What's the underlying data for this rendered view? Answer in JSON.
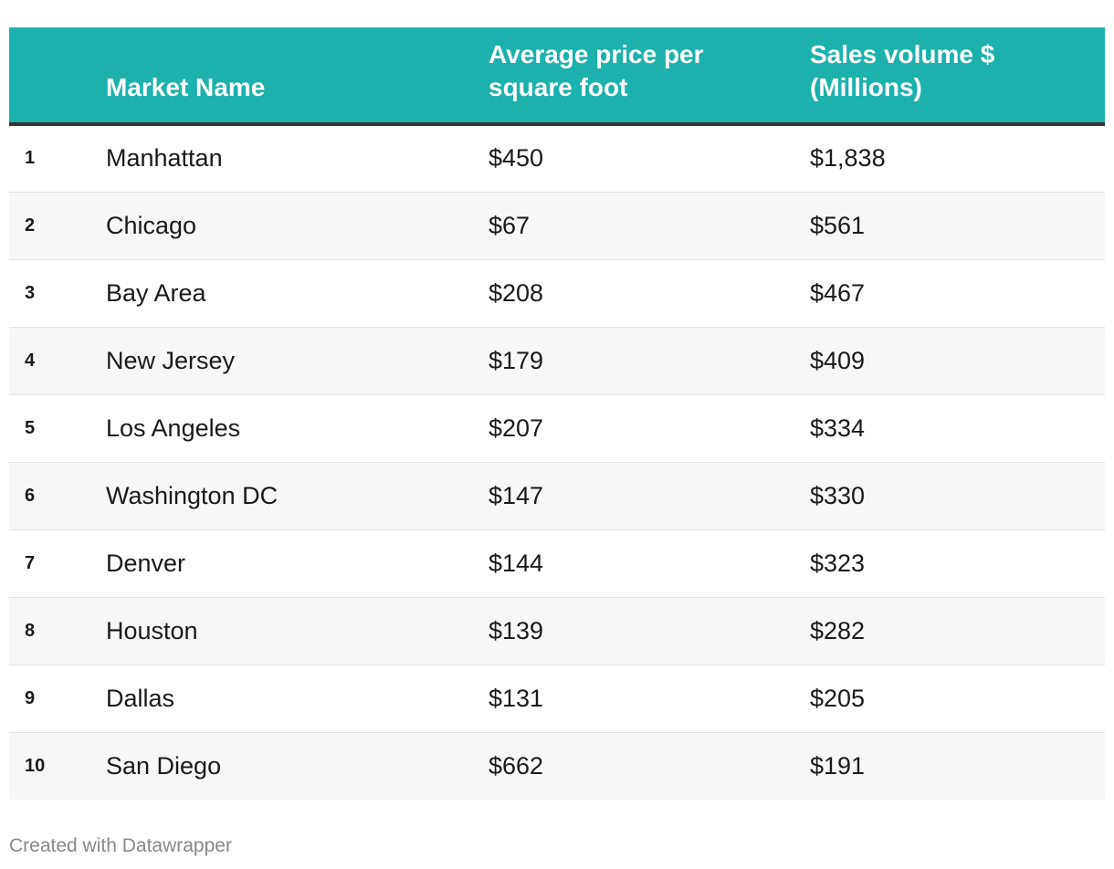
{
  "chart_data": {
    "type": "table",
    "columns": [
      "",
      "Market Name",
      "Average price per square foot",
      "Sales volume $ (Millions)"
    ],
    "rows": [
      {
        "rank": "1",
        "market": "Manhattan",
        "price": "$450",
        "sales": "$1,838"
      },
      {
        "rank": "2",
        "market": "Chicago",
        "price": "$67",
        "sales": "$561"
      },
      {
        "rank": "3",
        "market": "Bay Area",
        "price": "$208",
        "sales": "$467"
      },
      {
        "rank": "4",
        "market": "New Jersey",
        "price": "$179",
        "sales": "$409"
      },
      {
        "rank": "5",
        "market": "Los Angeles",
        "price": "$207",
        "sales": "$334"
      },
      {
        "rank": "6",
        "market": "Washington DC",
        "price": "$147",
        "sales": "$330"
      },
      {
        "rank": "7",
        "market": "Denver",
        "price": "$144",
        "sales": "$323"
      },
      {
        "rank": "8",
        "market": "Houston",
        "price": "$139",
        "sales": "$282"
      },
      {
        "rank": "9",
        "market": "Dallas",
        "price": "$131",
        "sales": "$205"
      },
      {
        "rank": "10",
        "market": "San Diego",
        "price": "$662",
        "sales": "$191"
      }
    ]
  },
  "colors": {
    "header_bg": "#1cb1ad",
    "header_text": "#ffffff",
    "header_rule": "#333333",
    "alt_row_bg": "#f7f7f7"
  },
  "footer": {
    "credit": "Created with Datawrapper"
  }
}
